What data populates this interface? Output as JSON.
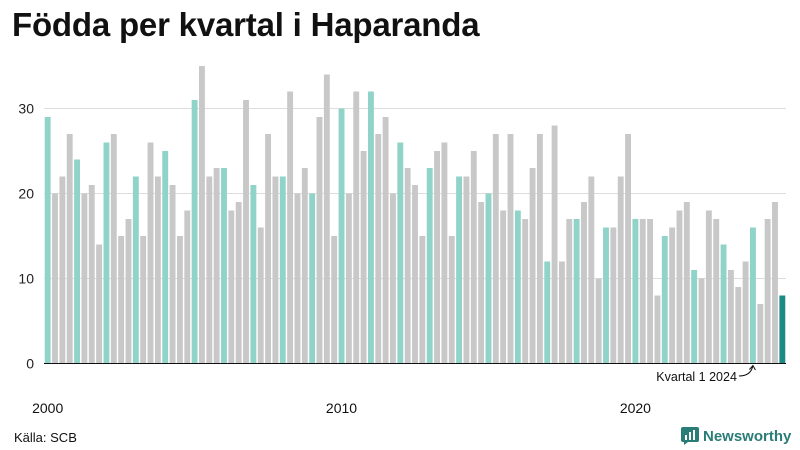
{
  "chart_data": {
    "type": "bar",
    "title": "Födda per kvartal i Haparanda",
    "source": "Källa: SCB",
    "brand": "Newsworthy",
    "xlabel": "",
    "ylabel": "",
    "ylim": [
      0,
      35
    ],
    "yticks": [
      0,
      10,
      20,
      30
    ],
    "x_tick_labels": [
      {
        "year": 2000,
        "label": "2000"
      },
      {
        "year": 2010,
        "label": "2010"
      },
      {
        "year": 2020,
        "label": "2020"
      }
    ],
    "start_year": 2000,
    "start_quarter": 1,
    "grid": true,
    "annotation": {
      "label": "Kvartal 1 2024",
      "target_index": 96
    },
    "colors": {
      "q1": "#8fd3c9",
      "other": "#c8c8c8",
      "latest": "#1a8a83",
      "grid": "#dddddd",
      "axis": "#111111",
      "brand": "#2a7c77"
    },
    "values": [
      29,
      20,
      22,
      27,
      24,
      20,
      21,
      14,
      26,
      27,
      15,
      17,
      22,
      15,
      26,
      22,
      25,
      21,
      15,
      18,
      31,
      35,
      22,
      23,
      23,
      18,
      19,
      31,
      21,
      16,
      27,
      22,
      22,
      32,
      20,
      23,
      20,
      29,
      34,
      15,
      30,
      20,
      32,
      25,
      32,
      27,
      29,
      20,
      26,
      23,
      21,
      15,
      23,
      25,
      26,
      15,
      22,
      22,
      25,
      19,
      20,
      27,
      18,
      27,
      18,
      17,
      23,
      27,
      12,
      28,
      12,
      17,
      17,
      19,
      22,
      10,
      16,
      16,
      22,
      27,
      17,
      17,
      17,
      8,
      15,
      16,
      18,
      19,
      11,
      10,
      18,
      17,
      14,
      11,
      9,
      12,
      16,
      7,
      17,
      19,
      8
    ]
  }
}
